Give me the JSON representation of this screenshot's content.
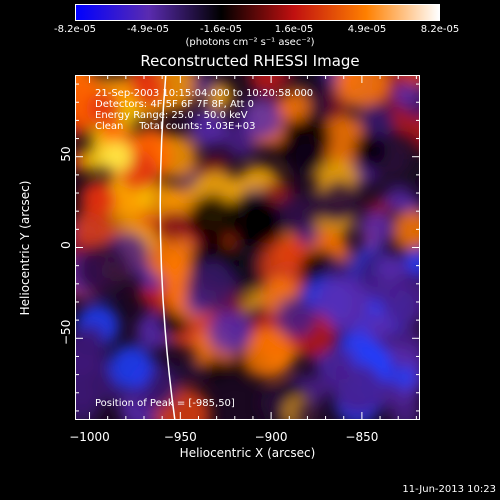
{
  "colorbar": {
    "ticks": [
      "-8.2e-05",
      "-4.9e-05",
      "-1.6e-05",
      "1.6e-05",
      "4.9e-05",
      "8.2e-05"
    ],
    "units": "(photons cm⁻² s⁻¹ asec⁻²)",
    "colors": [
      "#0000ff",
      "#5a2bb0",
      "#000000",
      "#c01010",
      "#ff8000",
      "#ffffff"
    ]
  },
  "chart_data": {
    "type": "heatmap",
    "title": "Reconstructed RHESSI Image",
    "xlabel": "Heliocentric X (arcsec)",
    "ylabel": "Heliocentric Y (arcsec)",
    "xlim": [
      -1008,
      -818
    ],
    "ylim": [
      -95,
      95
    ],
    "xticks": [
      -1000,
      -950,
      -900,
      -850
    ],
    "yticks": [
      50,
      0,
      -50
    ],
    "zlim": [
      -8.2e-05,
      8.2e-05
    ],
    "annotations": [
      "21-Sep-2003 10:15:04.000 to 10:20:58.000",
      "Detectors: 4F 5F 6F 7F 8F, Att 0",
      "Energy Range: 25.0 - 50.0 keV",
      "Clean     Total counts: 5.03E+03"
    ],
    "peak_label": "Position of Peak = [-985,50]",
    "peak": [
      -985,
      50
    ],
    "limb_color": "#ffffff"
  },
  "footer": {
    "date": "11-Jun-2013 10:23"
  }
}
